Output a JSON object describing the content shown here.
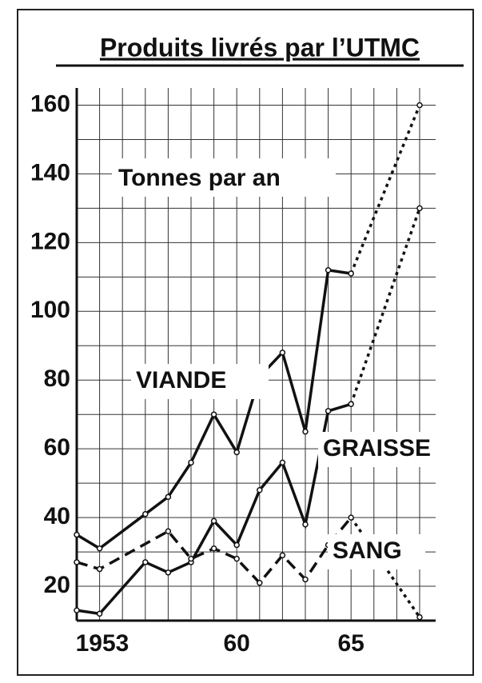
{
  "chart_data": {
    "type": "line",
    "title": "Produits livrés par l’UTMC",
    "annotations": [
      "Tonnes par an"
    ],
    "xlim": [
      1953,
      1968.7
    ],
    "ylim": [
      10,
      165
    ],
    "xticks": [
      1953,
      {
        "value": 1960,
        "label": "60"
      },
      {
        "value": 1965,
        "label": "65"
      }
    ],
    "xticks_minor": [
      1954,
      1955,
      1956,
      1957,
      1958,
      1959,
      1961,
      1962,
      1963,
      1964,
      1966,
      1967,
      1968
    ],
    "yticks": [
      20,
      40,
      60,
      80,
      100,
      120,
      140,
      160
    ],
    "yticks_minor": [
      30,
      50,
      70,
      90,
      110,
      130,
      150
    ],
    "grid": true,
    "series": [
      {
        "name": "VIANDE",
        "color": "#111111",
        "style": "solid",
        "projection_style": "dotted",
        "x": [
          1953,
          1954,
          1956,
          1957,
          1958,
          1959,
          1960,
          1961,
          1962,
          1963,
          1964,
          1965,
          1968
        ],
        "values": [
          35,
          31,
          41,
          46,
          56,
          70,
          59,
          81,
          88,
          65,
          112,
          111,
          160
        ]
      },
      {
        "name": "GRAISSE",
        "color": "#111111",
        "style": "solid",
        "projection_style": "dotted",
        "x": [
          1953,
          1954,
          1956,
          1957,
          1958,
          1959,
          1960,
          1961,
          1962,
          1963,
          1964,
          1965,
          1968
        ],
        "values": [
          13,
          12,
          27,
          24,
          27,
          39,
          32,
          48,
          56,
          38,
          71,
          73,
          130
        ]
      },
      {
        "name": "SANG",
        "color": "#111111",
        "style": "dashed",
        "projection_style": "dotted",
        "x": [
          1953,
          1954,
          1957,
          1958,
          1959,
          1960,
          1961,
          1962,
          1963,
          1964,
          1965,
          1968
        ],
        "values": [
          27,
          25,
          36,
          28,
          31,
          28,
          21,
          29,
          22,
          32,
          40,
          11
        ]
      }
    ]
  }
}
